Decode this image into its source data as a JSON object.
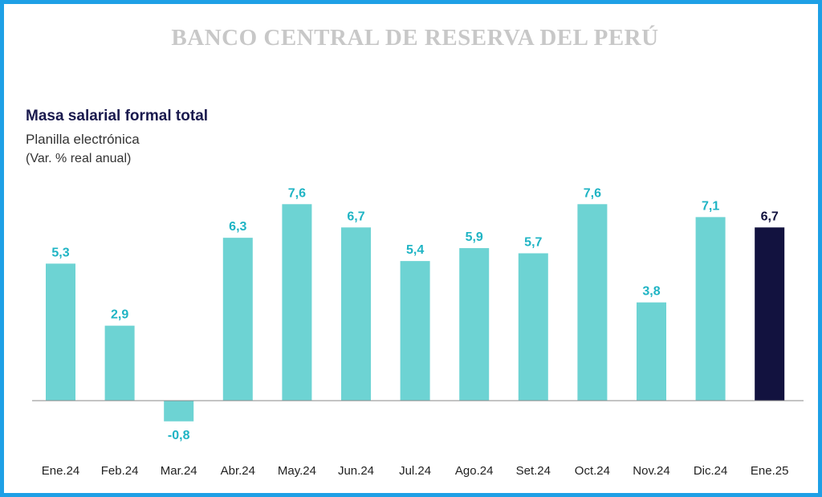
{
  "header": {
    "institution": "BANCO CENTRAL DE RESERVA DEL PERÚ"
  },
  "colors": {
    "frame": "#1ea0e6",
    "bar": "#6dd3d3",
    "highlight": "#12123f",
    "label": "#1fb4c4",
    "axis": "#888888"
  },
  "chart_data": {
    "type": "bar",
    "title": "Masa salarial formal total",
    "subtitle": "Planilla electrónica",
    "unit": "(Var. % real anual)",
    "categories": [
      "Ene.24",
      "Feb.24",
      "Mar.24",
      "Abr.24",
      "May.24",
      "Jun.24",
      "Jul.24",
      "Ago.24",
      "Set.24",
      "Oct.24",
      "Nov.24",
      "Dic.24",
      "Ene.25"
    ],
    "values": [
      5.3,
      2.9,
      -0.8,
      6.3,
      7.6,
      6.7,
      5.4,
      5.9,
      5.7,
      7.6,
      3.8,
      7.1,
      6.7
    ],
    "value_labels": [
      "5,3",
      "2,9",
      "-0,8",
      "6,3",
      "7,6",
      "6,7",
      "5,4",
      "5,9",
      "5,7",
      "7,6",
      "3,8",
      "7,1",
      "6,7"
    ],
    "highlight_index": 12,
    "ylim": [
      -1.5,
      8.5
    ],
    "grid": false,
    "xlabel": "",
    "ylabel": ""
  }
}
